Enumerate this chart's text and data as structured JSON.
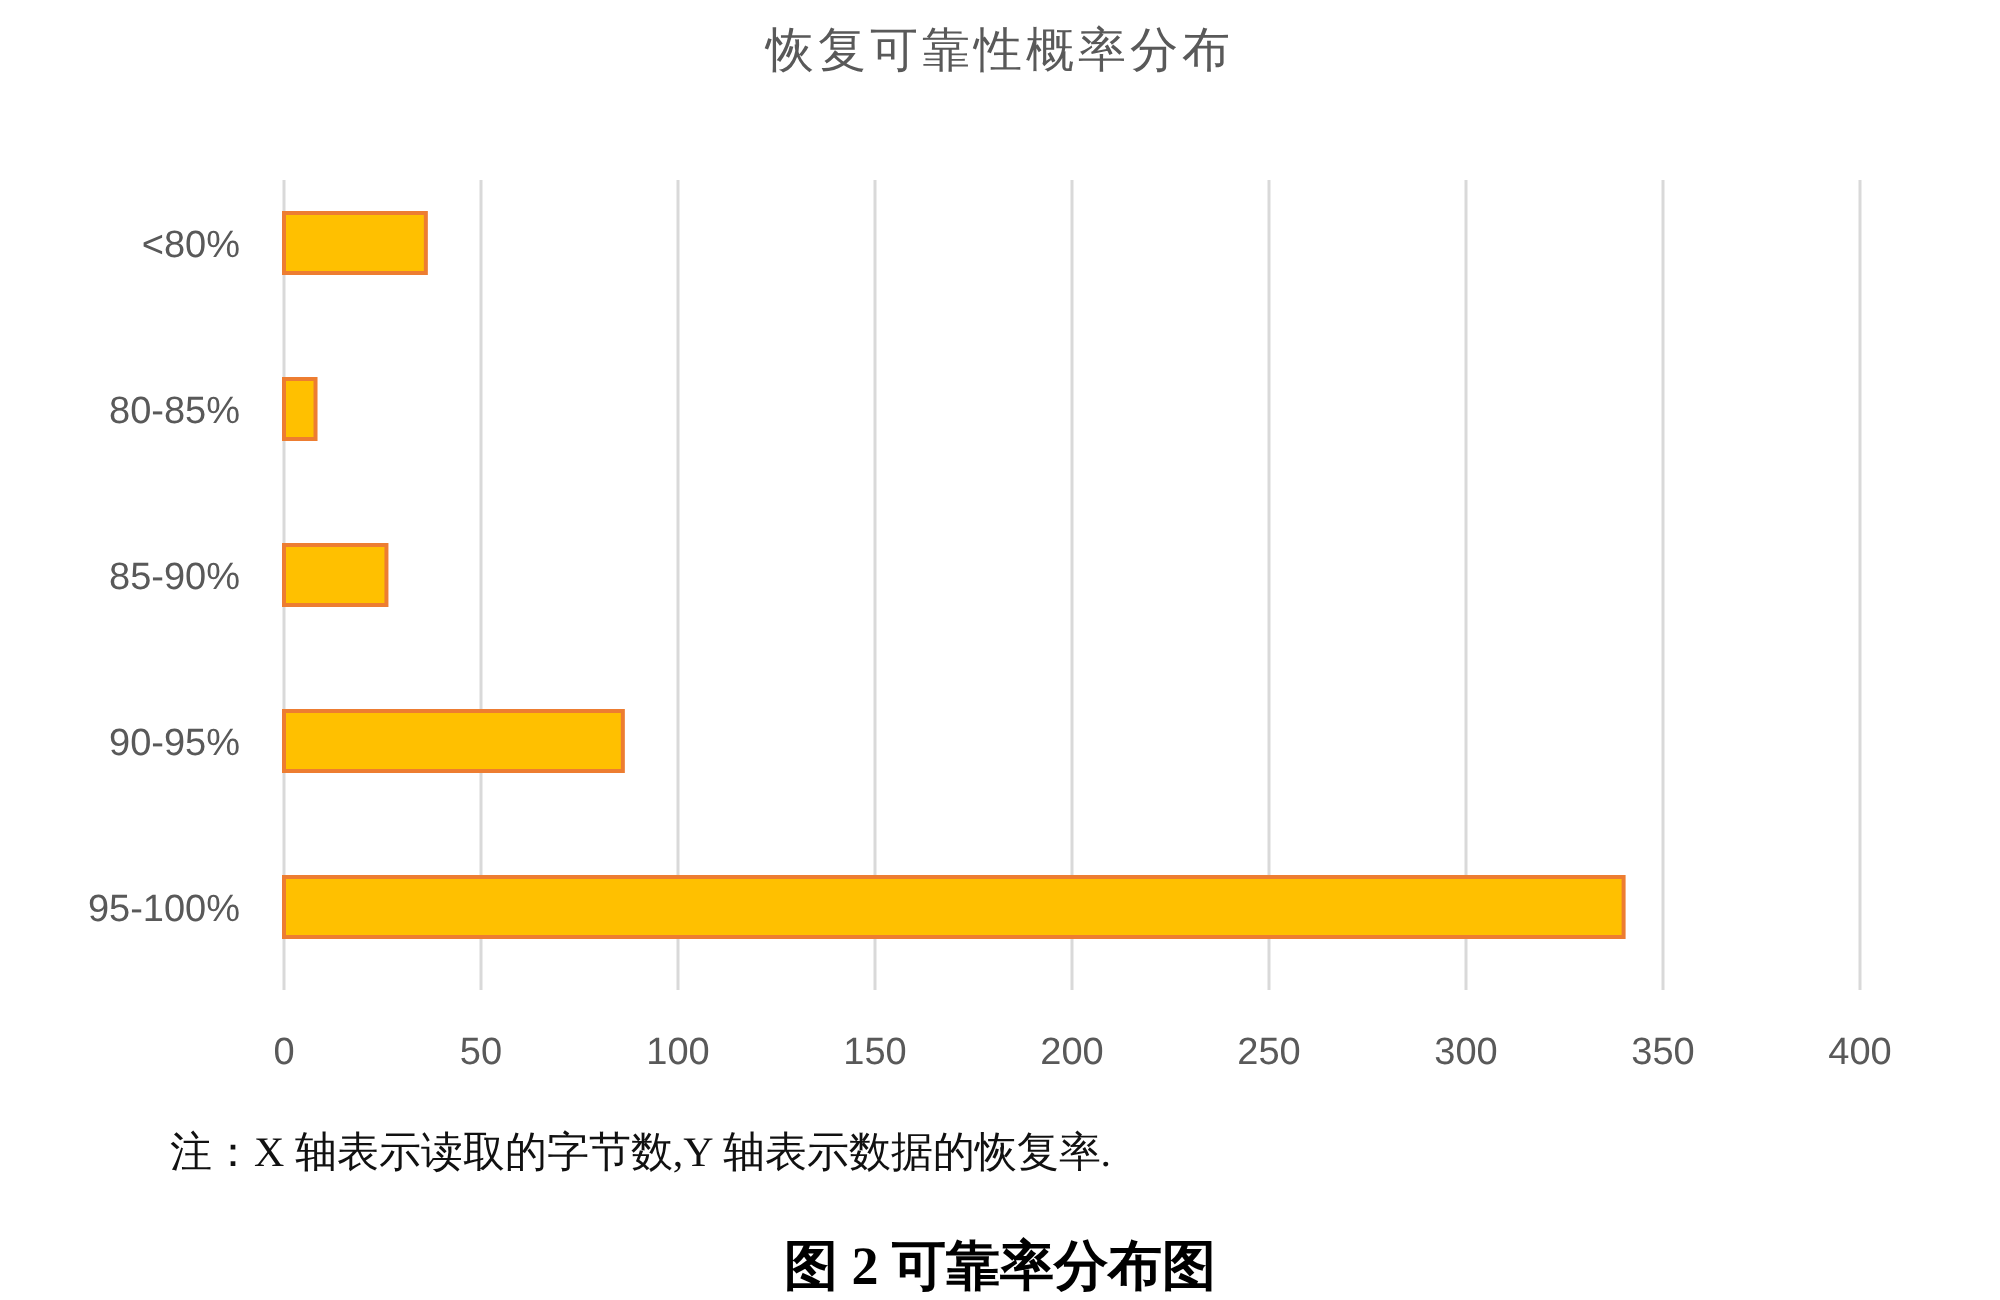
{
  "chart_data": {
    "type": "bar",
    "orientation": "horizontal",
    "title": "恢复可靠性概率分布",
    "categories": [
      "<80%",
      "80-85%",
      "85-90%",
      "90-95%",
      "95-100%"
    ],
    "values": [
      36,
      8,
      26,
      86,
      340
    ],
    "color": "#ffc000",
    "xlim": [
      0,
      400
    ],
    "xticks": [
      0,
      50,
      100,
      150,
      200,
      250,
      300,
      350,
      400
    ],
    "grid": "x",
    "annotations": [
      "注：X 轴表示读取的字节数,Y 轴表示数据的恢复率.",
      "图 2  可靠率分布图"
    ]
  }
}
